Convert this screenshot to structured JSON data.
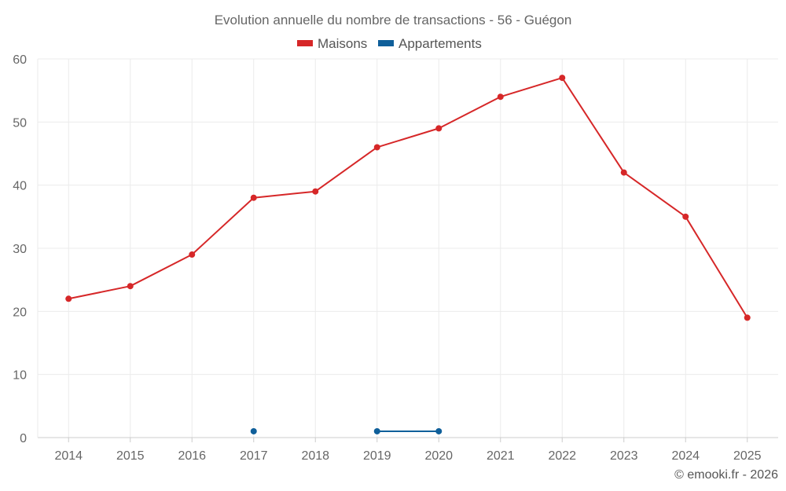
{
  "chart_data": {
    "type": "line",
    "title": "Evolution annuelle du nombre de transactions - 56 - Guégon",
    "categories": [
      "2014",
      "2015",
      "2016",
      "2017",
      "2018",
      "2019",
      "2020",
      "2021",
      "2022",
      "2023",
      "2024",
      "2025"
    ],
    "ylim": [
      0,
      60
    ],
    "yticks": [
      0,
      10,
      20,
      30,
      40,
      50,
      60
    ],
    "xlabel": "",
    "ylabel": "",
    "grid": true,
    "legend_position": "top-center",
    "series": [
      {
        "name": "Maisons",
        "color": "#d62728",
        "values": [
          22,
          24,
          29,
          38,
          39,
          46,
          49,
          54,
          57,
          42,
          35,
          19
        ]
      },
      {
        "name": "Appartements",
        "color": "#0f5f9a",
        "values": [
          null,
          null,
          null,
          1,
          null,
          1,
          1,
          null,
          null,
          null,
          null,
          null
        ]
      }
    ]
  },
  "credit": "© emooki.fr - 2026"
}
